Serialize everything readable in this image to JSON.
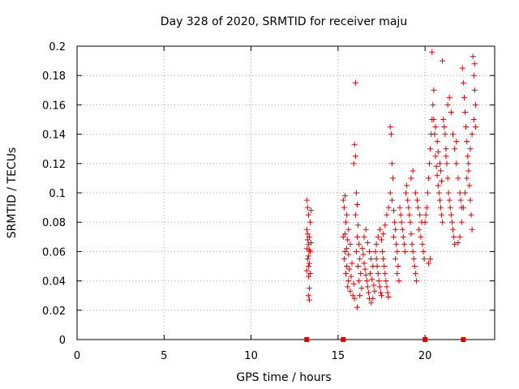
{
  "chart_data": {
    "type": "scatter",
    "title": "Day 328 of 2020, SRMTID for receiver maju",
    "xlabel": "GPS time / hours",
    "ylabel": "SRMTID / TECUs",
    "xlim": [
      0,
      24
    ],
    "ylim": [
      0,
      0.2
    ],
    "xticks": [
      0,
      5,
      10,
      15,
      20
    ],
    "xtick_labels": [
      "0",
      "5",
      "10",
      "15",
      "20"
    ],
    "yticks": [
      0,
      0.02,
      0.04,
      0.06,
      0.08,
      0.1,
      0.12,
      0.14,
      0.16,
      0.18,
      0.2
    ],
    "ytick_labels": [
      "0",
      "0.02",
      "0.04",
      "0.06",
      "0.08",
      "0.1",
      "0.12",
      "0.14",
      "0.16",
      "0.18",
      "0.2"
    ],
    "grid": true,
    "marker": "+",
    "color": "#e00000",
    "axis_markers": [
      {
        "x": 13.2,
        "y": 0
      },
      {
        "x": 15.3,
        "y": 0
      },
      {
        "x": 20.0,
        "y": 0
      },
      {
        "x": 22.2,
        "y": 0
      }
    ],
    "series": [
      {
        "name": "SRMTID",
        "points": [
          [
            13.2,
            0.095
          ],
          [
            13.25,
            0.09
          ],
          [
            13.3,
            0.085
          ],
          [
            13.2,
            0.075
          ],
          [
            13.35,
            0.07
          ],
          [
            13.25,
            0.068
          ],
          [
            13.3,
            0.065
          ],
          [
            13.2,
            0.062
          ],
          [
            13.4,
            0.06
          ],
          [
            13.3,
            0.057
          ],
          [
            13.25,
            0.055
          ],
          [
            13.35,
            0.052
          ],
          [
            13.3,
            0.05
          ],
          [
            13.2,
            0.047
          ],
          [
            13.4,
            0.045
          ],
          [
            13.3,
            0.043
          ],
          [
            13.35,
            0.035
          ],
          [
            13.3,
            0.03
          ],
          [
            13.35,
            0.027
          ],
          [
            13.45,
            0.088
          ],
          [
            13.4,
            0.08
          ],
          [
            13.25,
            0.072
          ],
          [
            13.45,
            0.066
          ],
          [
            13.35,
            0.061
          ],
          [
            15.3,
            0.095
          ],
          [
            15.4,
            0.098
          ],
          [
            15.35,
            0.09
          ],
          [
            15.5,
            0.085
          ],
          [
            15.45,
            0.08
          ],
          [
            15.6,
            0.075
          ],
          [
            15.4,
            0.072
          ],
          [
            15.3,
            0.07
          ],
          [
            15.55,
            0.068
          ],
          [
            15.7,
            0.065
          ],
          [
            15.5,
            0.062
          ],
          [
            15.4,
            0.06
          ],
          [
            15.6,
            0.058
          ],
          [
            15.35,
            0.055
          ],
          [
            15.8,
            0.052
          ],
          [
            15.5,
            0.05
          ],
          [
            15.65,
            0.048
          ],
          [
            15.45,
            0.045
          ],
          [
            15.75,
            0.043
          ],
          [
            15.6,
            0.04
          ],
          [
            15.9,
            0.038
          ],
          [
            15.55,
            0.036
          ],
          [
            15.7,
            0.033
          ],
          [
            15.85,
            0.03
          ],
          [
            15.95,
            0.028
          ],
          [
            16.0,
            0.175
          ],
          [
            15.95,
            0.133
          ],
          [
            16.0,
            0.125
          ],
          [
            15.9,
            0.12
          ],
          [
            16.05,
            0.1
          ],
          [
            16.1,
            0.092
          ],
          [
            16.0,
            0.085
          ],
          [
            16.15,
            0.078
          ],
          [
            16.1,
            0.07
          ],
          [
            16.2,
            0.065
          ],
          [
            16.05,
            0.06
          ],
          [
            16.25,
            0.055
          ],
          [
            16.15,
            0.05
          ],
          [
            16.3,
            0.045
          ],
          [
            16.2,
            0.04
          ],
          [
            16.35,
            0.035
          ],
          [
            16.25,
            0.03
          ],
          [
            16.1,
            0.022
          ],
          [
            16.4,
            0.062
          ],
          [
            16.45,
            0.058
          ],
          [
            16.5,
            0.052
          ],
          [
            16.55,
            0.048
          ],
          [
            16.6,
            0.044
          ],
          [
            16.65,
            0.04
          ],
          [
            16.7,
            0.036
          ],
          [
            16.75,
            0.032
          ],
          [
            16.8,
            0.028
          ],
          [
            16.5,
            0.07
          ],
          [
            16.6,
            0.075
          ],
          [
            16.7,
            0.066
          ],
          [
            16.8,
            0.06
          ],
          [
            16.9,
            0.055
          ],
          [
            17.0,
            0.05
          ],
          [
            16.85,
            0.045
          ],
          [
            16.95,
            0.041
          ],
          [
            17.05,
            0.037
          ],
          [
            17.1,
            0.033
          ],
          [
            17.0,
            0.028
          ],
          [
            16.9,
            0.025
          ],
          [
            17.15,
            0.06
          ],
          [
            17.2,
            0.055
          ],
          [
            17.25,
            0.05
          ],
          [
            17.3,
            0.045
          ],
          [
            17.35,
            0.04
          ],
          [
            17.4,
            0.036
          ],
          [
            17.45,
            0.032
          ],
          [
            17.5,
            0.03
          ],
          [
            17.2,
            0.065
          ],
          [
            17.3,
            0.07
          ],
          [
            17.4,
            0.075
          ],
          [
            17.5,
            0.068
          ],
          [
            17.55,
            0.06
          ],
          [
            17.6,
            0.055
          ],
          [
            17.65,
            0.05
          ],
          [
            17.7,
            0.045
          ],
          [
            17.75,
            0.04
          ],
          [
            17.8,
            0.036
          ],
          [
            17.85,
            0.032
          ],
          [
            17.9,
            0.029
          ],
          [
            17.6,
            0.072
          ],
          [
            17.7,
            0.078
          ],
          [
            17.8,
            0.085
          ],
          [
            17.9,
            0.09
          ],
          [
            18.0,
            0.1
          ],
          [
            18.0,
            0.145
          ],
          [
            18.05,
            0.14
          ],
          [
            18.1,
            0.12
          ],
          [
            18.15,
            0.11
          ],
          [
            18.1,
            0.095
          ],
          [
            18.2,
            0.088
          ],
          [
            18.25,
            0.08
          ],
          [
            18.3,
            0.075
          ],
          [
            18.2,
            0.07
          ],
          [
            18.35,
            0.065
          ],
          [
            18.4,
            0.06
          ],
          [
            18.3,
            0.055
          ],
          [
            18.45,
            0.05
          ],
          [
            18.4,
            0.045
          ],
          [
            18.5,
            0.04
          ],
          [
            18.55,
            0.09
          ],
          [
            18.6,
            0.085
          ],
          [
            18.65,
            0.08
          ],
          [
            18.7,
            0.075
          ],
          [
            18.75,
            0.07
          ],
          [
            18.8,
            0.065
          ],
          [
            18.85,
            0.06
          ],
          [
            18.9,
            0.1
          ],
          [
            18.95,
            0.105
          ],
          [
            19.0,
            0.095
          ],
          [
            19.05,
            0.09
          ],
          [
            19.1,
            0.085
          ],
          [
            19.15,
            0.08
          ],
          [
            19.2,
            0.072
          ],
          [
            19.25,
            0.065
          ],
          [
            19.3,
            0.06
          ],
          [
            19.35,
            0.055
          ],
          [
            19.4,
            0.05
          ],
          [
            19.45,
            0.045
          ],
          [
            19.5,
            0.04
          ],
          [
            19.2,
            0.11
          ],
          [
            19.3,
            0.115
          ],
          [
            19.45,
            0.1
          ],
          [
            19.55,
            0.095
          ],
          [
            19.6,
            0.09
          ],
          [
            19.7,
            0.085
          ],
          [
            19.8,
            0.08
          ],
          [
            19.65,
            0.075
          ],
          [
            19.75,
            0.07
          ],
          [
            19.85,
            0.065
          ],
          [
            19.9,
            0.06
          ],
          [
            19.95,
            0.055
          ],
          [
            20.0,
            0.08
          ],
          [
            20.05,
            0.085
          ],
          [
            20.1,
            0.09
          ],
          [
            20.15,
            0.1
          ],
          [
            20.2,
            0.11
          ],
          [
            20.25,
            0.12
          ],
          [
            20.3,
            0.13
          ],
          [
            20.35,
            0.14
          ],
          [
            20.4,
            0.15
          ],
          [
            20.45,
            0.16
          ],
          [
            20.5,
            0.17
          ],
          [
            20.4,
            0.196
          ],
          [
            20.6,
            0.125
          ],
          [
            20.65,
            0.118
          ],
          [
            20.7,
            0.112
          ],
          [
            20.75,
            0.105
          ],
          [
            20.8,
            0.1
          ],
          [
            20.85,
            0.095
          ],
          [
            20.9,
            0.09
          ],
          [
            20.95,
            0.085
          ],
          [
            21.0,
            0.08
          ],
          [
            20.55,
            0.14
          ],
          [
            20.6,
            0.145
          ],
          [
            20.7,
            0.135
          ],
          [
            20.75,
            0.128
          ],
          [
            20.85,
            0.12
          ],
          [
            20.9,
            0.115
          ],
          [
            20.95,
            0.108
          ],
          [
            21.0,
            0.19
          ],
          [
            21.05,
            0.15
          ],
          [
            21.1,
            0.145
          ],
          [
            21.15,
            0.14
          ],
          [
            21.2,
            0.13
          ],
          [
            21.25,
            0.12
          ],
          [
            21.3,
            0.11
          ],
          [
            21.35,
            0.1
          ],
          [
            21.4,
            0.095
          ],
          [
            21.45,
            0.09
          ],
          [
            21.5,
            0.085
          ],
          [
            21.55,
            0.08
          ],
          [
            21.6,
            0.075
          ],
          [
            21.65,
            0.07
          ],
          [
            21.7,
            0.065
          ],
          [
            21.3,
            0.16
          ],
          [
            21.4,
            0.165
          ],
          [
            21.5,
            0.155
          ],
          [
            21.6,
            0.14
          ],
          [
            21.7,
            0.13
          ],
          [
            21.8,
            0.12
          ],
          [
            21.9,
            0.11
          ],
          [
            22.0,
            0.1
          ],
          [
            22.05,
            0.095
          ],
          [
            22.1,
            0.09
          ],
          [
            22.15,
            0.185
          ],
          [
            22.2,
            0.175
          ],
          [
            22.25,
            0.165
          ],
          [
            22.3,
            0.155
          ],
          [
            22.35,
            0.145
          ],
          [
            22.4,
            0.135
          ],
          [
            22.45,
            0.125
          ],
          [
            22.5,
            0.115
          ],
          [
            22.55,
            0.105
          ],
          [
            22.6,
            0.095
          ],
          [
            22.65,
            0.085
          ],
          [
            22.7,
            0.075
          ],
          [
            22.75,
            0.193
          ],
          [
            22.8,
            0.18
          ],
          [
            22.85,
            0.17
          ],
          [
            22.9,
            0.16
          ],
          [
            22.8,
            0.15
          ],
          [
            22.7,
            0.14
          ],
          [
            22.6,
            0.13
          ],
          [
            22.5,
            0.12
          ],
          [
            22.4,
            0.11
          ],
          [
            22.3,
            0.1
          ],
          [
            22.2,
            0.09
          ],
          [
            22.1,
            0.08
          ],
          [
            22.0,
            0.07
          ],
          [
            21.9,
            0.066
          ],
          [
            20.3,
            0.055
          ],
          [
            20.2,
            0.052
          ],
          [
            20.5,
            0.15
          ],
          [
            21.2,
            0.125
          ],
          [
            21.8,
            0.135
          ],
          [
            22.9,
            0.145
          ],
          [
            22.85,
            0.188
          ]
        ]
      }
    ]
  }
}
